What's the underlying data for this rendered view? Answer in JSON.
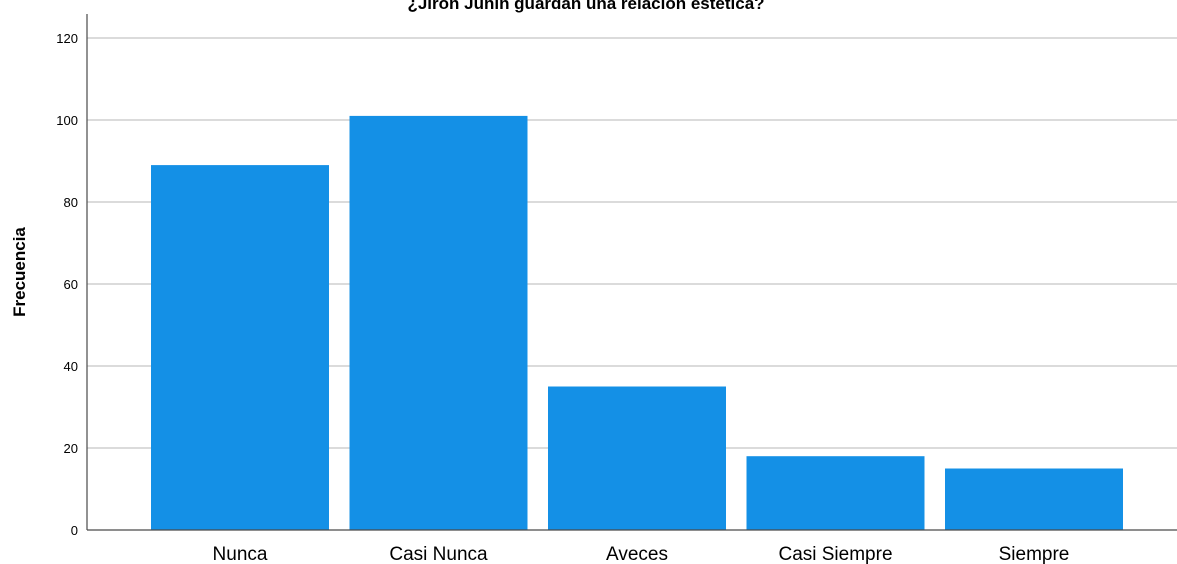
{
  "chart_data": {
    "type": "bar",
    "title": "¿Jirón Junín guardan una relación estética?",
    "xlabel": "",
    "ylabel": "Frecuencia",
    "categories": [
      "Nunca",
      "Casi Nunca",
      "Aveces",
      "Casi Siempre",
      "Siempre"
    ],
    "values": [
      89,
      101,
      35,
      18,
      15
    ],
    "ylim": [
      0,
      125
    ],
    "yticks": [
      0,
      20,
      40,
      60,
      80,
      100,
      120
    ],
    "grid": true,
    "bar_color": "#1490E6",
    "legend": "none"
  }
}
